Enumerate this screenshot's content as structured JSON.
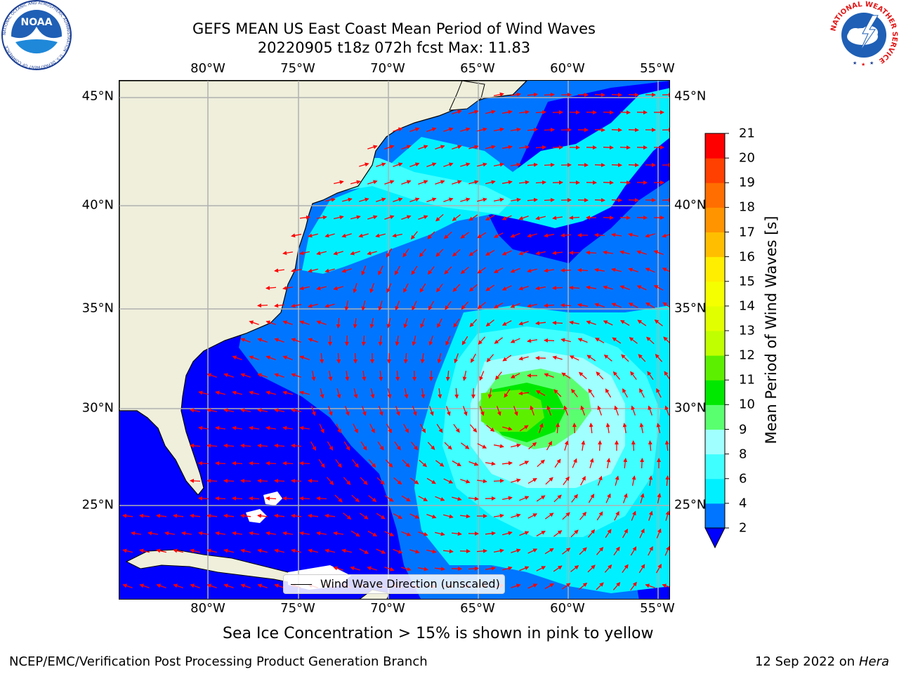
{
  "header": {
    "title_line1": "GEFS MEAN US East Coast Mean Period of Wind Waves",
    "title_line2": "20220905 t18z 072h fcst   Max: 11.83"
  },
  "logos": {
    "left": "NOAA",
    "left_ring_text": "NATIONAL OCEANIC AND ATMOSPHERIC ADMINISTRATION · U.S. DEPARTMENT OF COMMERCE",
    "right_ring_text": "NATIONAL WEATHER SERVICE"
  },
  "map": {
    "projection": "plate-carree",
    "lon_range": [
      -85,
      -54.5
    ],
    "lat_range": [
      20.5,
      46
    ],
    "lon_ticks": [
      "80°W",
      "75°W",
      "70°W",
      "65°W",
      "60°W",
      "55°W"
    ],
    "lat_ticks": [
      "45°N",
      "40°N",
      "35°N",
      "30°N",
      "25°N"
    ],
    "gridlines": true,
    "colors": {
      "land": "#efefdc",
      "grid": "#b0b0b0",
      "arrow": "#ff0000",
      "coast": "#000000"
    },
    "vector_field": "wind wave direction arrows (red)"
  },
  "colorbar": {
    "label": "Mean Period of Wind Waves [s]",
    "tick_labels": [
      "2",
      "4",
      "6",
      "8",
      "9",
      "10",
      "11",
      "12",
      "13",
      "14",
      "15",
      "16",
      "17",
      "18",
      "19",
      "20",
      "21"
    ],
    "bins": [
      {
        "from": 2,
        "to": 4,
        "color": "#0075ff"
      },
      {
        "from": 4,
        "to": 6,
        "color": "#00f0ff"
      },
      {
        "from": 6,
        "to": 8,
        "color": "#40ffff"
      },
      {
        "from": 8,
        "to": 9,
        "color": "#a0ffff"
      },
      {
        "from": 9,
        "to": 10,
        "color": "#5aff70"
      },
      {
        "from": 10,
        "to": 11,
        "color": "#00e800"
      },
      {
        "from": 11,
        "to": 12,
        "color": "#5cf000"
      },
      {
        "from": 12,
        "to": 13,
        "color": "#c0ff00"
      },
      {
        "from": 13,
        "to": 14,
        "color": "#e2ff00"
      },
      {
        "from": 14,
        "to": 15,
        "color": "#f5ff00"
      },
      {
        "from": 15,
        "to": 16,
        "color": "#ffee00"
      },
      {
        "from": 16,
        "to": 17,
        "color": "#ffbf00"
      },
      {
        "from": 17,
        "to": 18,
        "color": "#ff9400"
      },
      {
        "from": 18,
        "to": 19,
        "color": "#ff6e00"
      },
      {
        "from": 19,
        "to": 20,
        "color": "#ff4000"
      },
      {
        "from": 20,
        "to": 21,
        "color": "#ff0000"
      }
    ],
    "under_color": "#0000ff",
    "extend": "min"
  },
  "legend": {
    "label": "Wind Wave Direction (unscaled)"
  },
  "subtitle": "Sea Ice Concentration > 15% is shown in pink to yellow",
  "footer": {
    "left": "NCEP/EMC/Verification Post Processing Product Generation Branch",
    "right_prefix": "12 Sep 2022 on",
    "right_machine": "Hera"
  }
}
